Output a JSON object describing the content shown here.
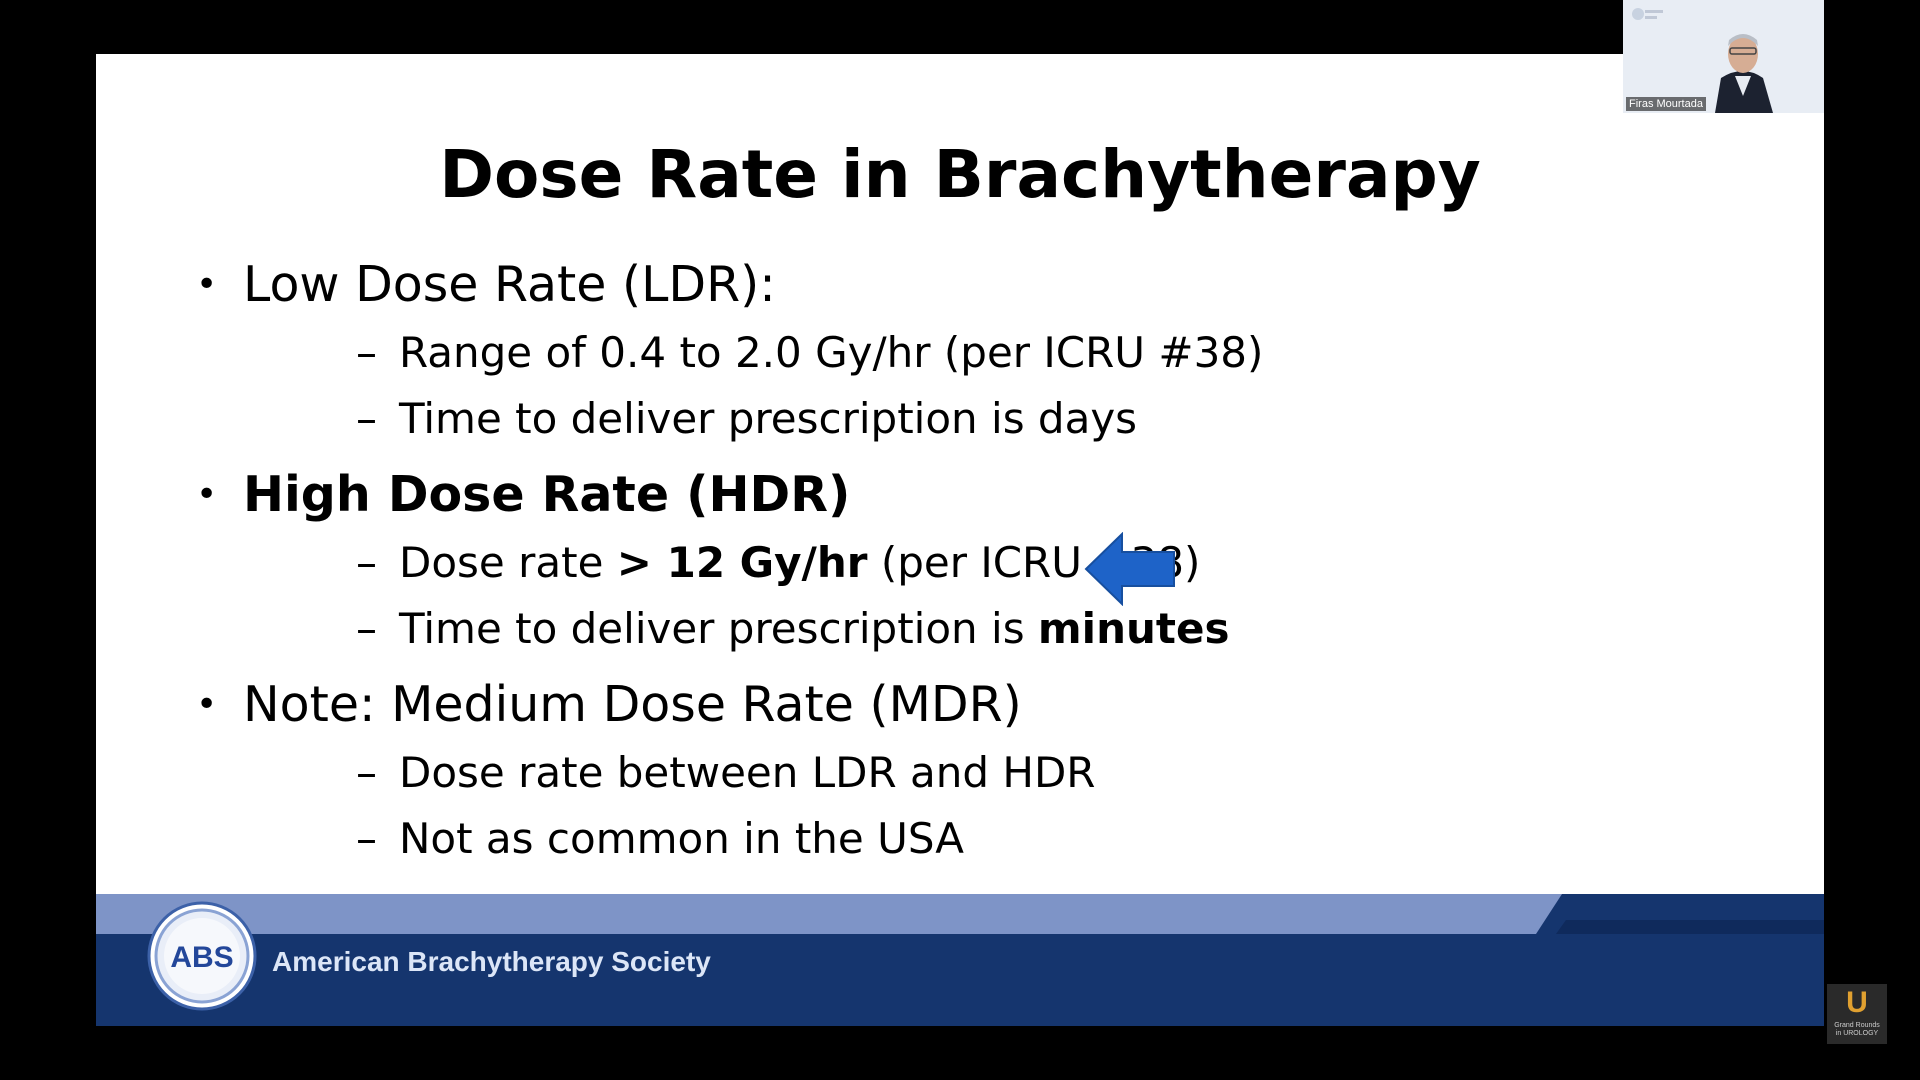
{
  "slide": {
    "title": "Dose Rate in Brachytherapy",
    "bullet_char": "•",
    "dash_char": "–",
    "ldr": {
      "heading": "Low Dose Rate (LDR):",
      "sub1": "Range of 0.4 to 2.0 Gy/hr (per ICRU #38)",
      "sub2": "Time to deliver prescription is days"
    },
    "hdr": {
      "heading": "High Dose Rate (HDR)",
      "sub1_pre": "Dose rate ",
      "sub1_bold": "> 12 Gy/hr",
      "sub1_post": " (per ICRU #38)",
      "sub2_pre": "Time to deliver prescription is ",
      "sub2_bold": "minutes"
    },
    "mdr": {
      "heading": "Note: Medium Dose Rate (MDR)",
      "sub1": "Dose rate between LDR and HDR",
      "sub2": "Not as common in the USA"
    },
    "arrow_color": "#1e63c8"
  },
  "footer": {
    "logo_text": "ABS",
    "society_name": "American Brachytherapy Society",
    "light_color": "#7e94c7",
    "dark_color": "#15356e"
  },
  "video": {
    "participant_name": "Firas Mourtada"
  },
  "channel_logo": {
    "letter": "U",
    "line1": "Grand Rounds",
    "line2": "in UROLOGY"
  }
}
